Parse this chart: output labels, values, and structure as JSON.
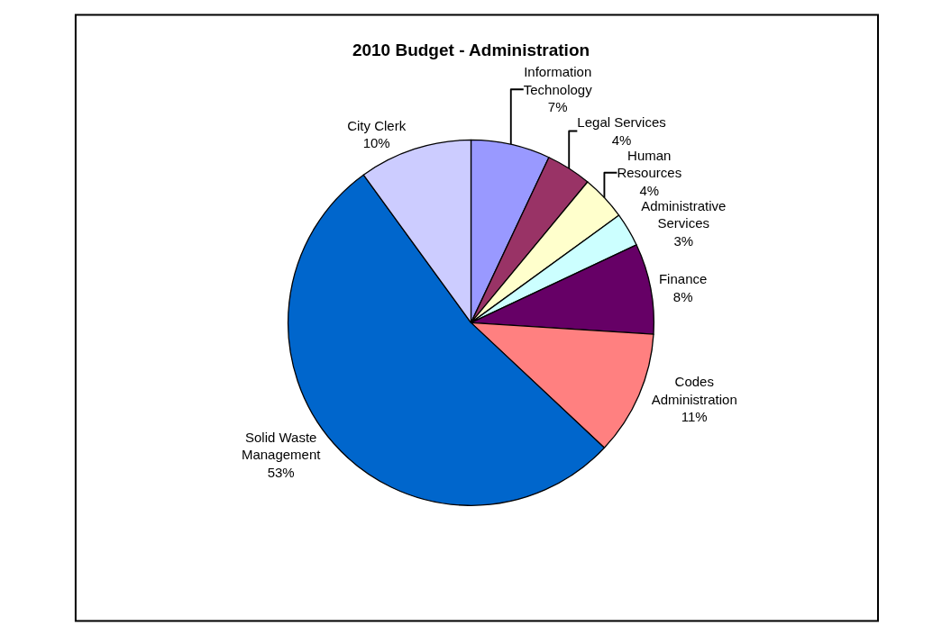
{
  "chart_data": {
    "type": "pie",
    "title": "2010 Budget - Administration",
    "categories": [
      "Information Technology",
      "Legal Services",
      "Human Resources",
      "Administrative Services",
      "Finance",
      "Codes Administration",
      "Solid Waste Management",
      "City Clerk"
    ],
    "values": [
      7,
      4,
      4,
      3,
      8,
      11,
      53,
      10
    ],
    "value_labels": [
      "7%",
      "4%",
      "4%",
      "3%",
      "8%",
      "11%",
      "53%",
      "10%"
    ],
    "colors": [
      "#9999ff",
      "#993366",
      "#ffffcc",
      "#ccffff",
      "#660066",
      "#ff8080",
      "#0066cc",
      "#ccccff"
    ],
    "legend": false
  }
}
